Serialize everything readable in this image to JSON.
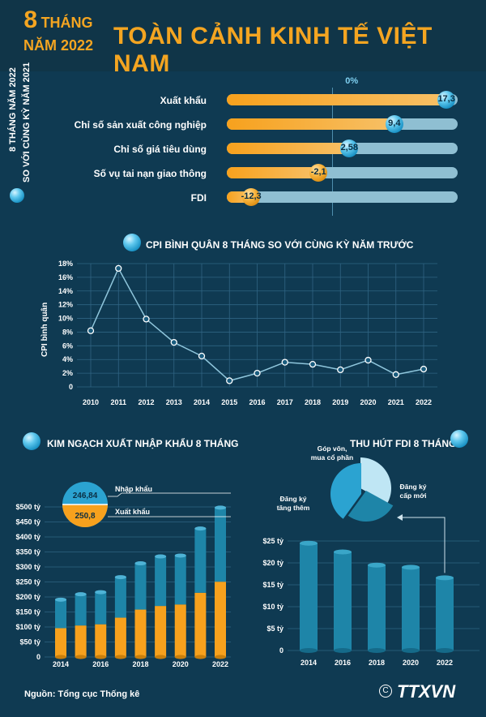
{
  "header": {
    "period_line1_big": "8",
    "period_line1_small": "THÁNG",
    "period_line2": "NĂM 2022",
    "title": "TOÀN CẢNH KINH TẾ VIỆT NAM"
  },
  "side_label": {
    "line1": "8 THÁNG NĂM 2022",
    "line2": "SO VỚI CÙNG KỲ NĂM 2021"
  },
  "colors": {
    "background": "#0f3a52",
    "accent_orange": "#f4a521",
    "accent_blue": "#2ba3d1"
  },
  "icons": [
    "bubble-icon",
    "arrow-icon",
    "ttxvn-logo"
  ],
  "chart_data": [
    {
      "type": "bar",
      "zero_label": "0%",
      "categories": [
        "Xuất khẩu",
        "Chỉ số sản xuất công nghiệp",
        "Chỉ số giá tiêu dùng",
        "Số vụ tai nạn giao thông",
        "FDI"
      ],
      "values": [
        17.3,
        9.4,
        2.58,
        -2.1,
        -12.3
      ],
      "value_labels": [
        "17,3",
        "9,4",
        "2,58",
        "-2,1",
        "-12,3"
      ],
      "xlim": [
        -16,
        19
      ]
    },
    {
      "type": "line",
      "title": "CPI BÌNH QUÂN 8 THÁNG SO VỚI CÙNG KỲ NĂM TRƯỚC",
      "ylabel": "CPI bình quân",
      "x": [
        "2010",
        "2011",
        "2012",
        "2013",
        "2014",
        "2015",
        "2016",
        "2017",
        "2018",
        "2019",
        "2020",
        "2021",
        "2022"
      ],
      "values": [
        8.2,
        17.3,
        9.9,
        6.5,
        4.5,
        0.9,
        2.0,
        3.6,
        3.3,
        2.5,
        3.9,
        1.8,
        2.6
      ],
      "yticks": [
        "0",
        "2%",
        "4%",
        "6%",
        "8%",
        "10%",
        "12%",
        "14%",
        "16%",
        "18%"
      ],
      "ylim": [
        0,
        18
      ]
    },
    {
      "type": "bar",
      "title": "KIM NGẠCH XUẤT NHẬP KHẨU 8 THÁNG",
      "stacked": true,
      "xticks": [
        "2014",
        "2016",
        "2018",
        "2020",
        "2022"
      ],
      "categories": [
        "2014",
        "2015",
        "2016",
        "2017",
        "2018",
        "2019",
        "2020",
        "2021",
        "2022"
      ],
      "series": [
        {
          "name": "Xuất khẩu",
          "values": [
            96,
            105,
            109,
            131,
            158,
            170,
            175,
            214,
            250.8
          ]
        },
        {
          "name": "Nhập khẩu",
          "values": [
            95,
            104,
            107,
            135,
            154,
            165,
            163,
            214,
            246.84
          ]
        }
      ],
      "legend_values": [
        "246,84",
        "250,8"
      ],
      "yticks": [
        "0",
        "$50 tỷ",
        "$100 tỷ",
        "$150 tỷ",
        "$200 tỷ",
        "$250 tỷ",
        "$300 tỷ",
        "$350 tỷ",
        "$400 tỷ",
        "$450 tỷ",
        "$500 tỷ"
      ],
      "ylim": [
        0,
        500
      ]
    },
    {
      "type": "bar",
      "title": "THU HÚT FDI 8 THÁNG",
      "categories": [
        "2014",
        "2016",
        "2018",
        "2020",
        "2022"
      ],
      "values": [
        24.5,
        22.5,
        19.5,
        19.0,
        16.6
      ],
      "yticks": [
        "0",
        "$5 tỷ",
        "$10 tỷ",
        "$15 tỷ",
        "$20 tỷ",
        "$25 tỷ"
      ],
      "ylim": [
        0,
        25
      ]
    },
    {
      "type": "pie",
      "slices": [
        {
          "name": "Góp vốn, mua cổ phần",
          "value": 33
        },
        {
          "name": "Đăng ký cấp mới",
          "value": 27
        },
        {
          "name": "Đăng ký tăng thêm",
          "value": 40
        }
      ]
    }
  ],
  "source": "Nguồn: Tổng cục Thống kê",
  "logo": "TTXVN"
}
